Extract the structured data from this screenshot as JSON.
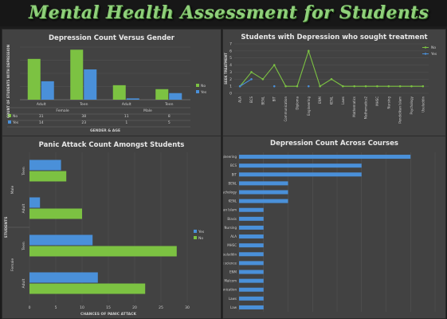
{
  "page": {
    "title": "Mental Health Assessment for Students"
  },
  "colors": {
    "green": "#7cc242",
    "blue": "#4a90d9",
    "panel": "#424242",
    "title": "#8fd07a"
  },
  "chart_data": [
    {
      "id": "gender",
      "type": "bar",
      "title": "Depression Count Versus Gender",
      "xlabel": "GENDER & AGE",
      "ylabel": "COUNT OF STUDENTS WITH DEPRESSION",
      "ylim": [
        0,
        40
      ],
      "groups": [
        "Female",
        "Male"
      ],
      "categories": [
        "Adult",
        "Teen",
        "Adult",
        "Teen"
      ],
      "series": [
        {
          "name": "No",
          "values": [
            31,
            38,
            11,
            8
          ]
        },
        {
          "name": "Yes",
          "values": [
            14,
            23,
            1,
            5
          ]
        }
      ],
      "table_header": "",
      "legend": "right"
    },
    {
      "id": "treatment",
      "type": "line",
      "title": "Students with Depression who sought treatment",
      "ylabel": "SEEK TREATMENT",
      "ylim": [
        0,
        7
      ],
      "yticks": [
        0,
        1,
        2,
        3,
        4,
        5,
        6,
        7
      ],
      "categories": [
        "ALA",
        "BCS",
        "BENL",
        "BIT",
        "Communication",
        "Diploma",
        "Engineering",
        "ENM",
        "KENL",
        "Laws",
        "Mathematics",
        "Mathematics2",
        "MHSC",
        "Nursing",
        "Pendidikan Islam",
        "Psychology",
        "Usuluddin"
      ],
      "series": [
        {
          "name": "No",
          "values": [
            1,
            3,
            2,
            4,
            1,
            1,
            6,
            1,
            2,
            1,
            1,
            1,
            1,
            1,
            1,
            1,
            1
          ]
        },
        {
          "name": "Yes",
          "values": [
            1,
            2,
            null,
            1,
            null,
            null,
            1,
            null,
            null,
            null,
            null,
            null,
            null,
            null,
            null,
            null,
            null
          ]
        }
      ],
      "legend": "top-right"
    },
    {
      "id": "panic",
      "type": "bar",
      "orientation": "horizontal",
      "title": "Panic Attack Count Amongst Students",
      "xlabel": "CHANCES OF PANIC ATTACK",
      "ylabel": "STUDENTS",
      "xlim": [
        0,
        30
      ],
      "xticks": [
        0,
        5,
        10,
        15,
        20,
        25,
        30
      ],
      "groups": [
        "Male",
        "Female"
      ],
      "categories": [
        "Teen",
        "Adult",
        "Teen",
        "Adult"
      ],
      "series": [
        {
          "name": "Yes",
          "values": [
            6,
            2,
            12,
            13
          ]
        },
        {
          "name": "No",
          "values": [
            7,
            10,
            28,
            22
          ]
        }
      ],
      "legend": "right"
    },
    {
      "id": "courses",
      "type": "bar",
      "orientation": "horizontal",
      "title": "Depression Count Across Courses",
      "xlim": [
        0,
        8
      ],
      "xticks": [
        0,
        1,
        2,
        3,
        4,
        5,
        6,
        7,
        8
      ],
      "categories": [
        "Engineering",
        "BCS",
        "BIT",
        "BENL",
        "Psychology",
        "KENL",
        "Pendidikan Islam",
        "Biasis",
        "Nursing",
        "ALA",
        "MHSC",
        "Usuluddin",
        "Marine science",
        "ENM",
        "Malcom",
        "Communication",
        "Laws",
        "Law"
      ],
      "values": [
        7,
        5,
        5,
        2,
        2,
        2,
        1,
        1,
        1,
        1,
        1,
        1,
        1,
        1,
        1,
        1,
        1,
        1
      ]
    }
  ]
}
